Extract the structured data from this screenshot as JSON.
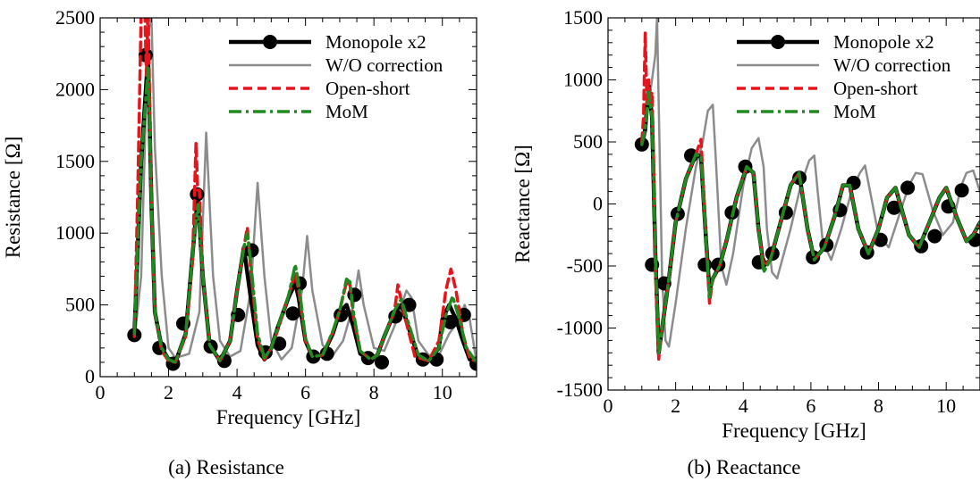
{
  "figure": {
    "colors": {
      "monopole": "#000000",
      "wo_correction": "#8c8c8c",
      "open_short": "#e8141b",
      "mom": "#1f8a1f"
    }
  },
  "chart_data": [
    {
      "type": "line",
      "caption": "(a) Resistance",
      "xlabel": "Frequency [GHz]",
      "ylabel": "Resistance [Ω]",
      "xlim": [
        0,
        11
      ],
      "ylim": [
        0,
        2500
      ],
      "xticks": [
        0,
        2,
        4,
        6,
        8,
        10
      ],
      "yticks": [
        0,
        500,
        1000,
        1500,
        2000,
        2500
      ],
      "legend_position": "top-right",
      "series": [
        {
          "name": "Monopole x2",
          "key": "monopole",
          "x": [
            1.0,
            1.2,
            1.4,
            1.5,
            1.6,
            1.8,
            2.0,
            2.2,
            2.5,
            2.7,
            2.85,
            3.0,
            3.2,
            3.5,
            3.8,
            4.0,
            4.2,
            4.4,
            4.6,
            4.8,
            5.0,
            5.2,
            5.5,
            5.7,
            5.8,
            6.0,
            6.2,
            6.5,
            6.8,
            7.0,
            7.2,
            7.4,
            7.6,
            7.9,
            8.1,
            8.3,
            8.6,
            8.8,
            9.0,
            9.3,
            9.6,
            9.9,
            10.0,
            10.2,
            10.4,
            10.6,
            10.8,
            11.0
          ],
          "y": [
            300,
            1500,
            2240,
            1200,
            450,
            200,
            120,
            100,
            300,
            850,
            1250,
            700,
            220,
            110,
            250,
            600,
            900,
            550,
            220,
            120,
            200,
            350,
            550,
            650,
            550,
            250,
            140,
            150,
            300,
            450,
            500,
            350,
            160,
            120,
            150,
            280,
            450,
            500,
            350,
            140,
            110,
            200,
            400,
            500,
            400,
            250,
            120,
            100
          ],
          "markers_x": [
            1.0,
            1.33,
            1.73,
            2.13,
            2.43,
            2.83,
            3.23,
            3.63,
            4.03,
            4.43,
            4.83,
            5.23,
            5.63,
            5.83,
            6.23,
            6.63,
            7.03,
            7.43,
            7.83,
            8.23,
            8.63,
            9.03,
            9.43,
            9.83,
            10.23,
            10.63,
            11.0
          ],
          "markers_y": [
            290,
            2240,
            200,
            90,
            370,
            1270,
            210,
            110,
            430,
            880,
            170,
            230,
            440,
            650,
            140,
            160,
            430,
            570,
            130,
            100,
            420,
            500,
            120,
            120,
            380,
            430,
            90
          ]
        },
        {
          "name": "W/O correction",
          "key": "wo_correction",
          "x": [
            1.0,
            1.2,
            1.4,
            1.5,
            1.6,
            1.8,
            2.0,
            2.2,
            2.6,
            2.9,
            3.1,
            3.3,
            3.5,
            3.8,
            4.1,
            4.4,
            4.6,
            4.8,
            5.0,
            5.3,
            5.6,
            5.9,
            6.05,
            6.2,
            6.5,
            6.8,
            7.1,
            7.4,
            7.55,
            7.7,
            8.0,
            8.3,
            8.6,
            8.95,
            9.1,
            9.3,
            9.6,
            9.9,
            10.2,
            10.5,
            10.65,
            10.8,
            11.0
          ],
          "y": [
            250,
            700,
            2400,
            2500,
            1600,
            700,
            200,
            130,
            160,
            450,
            1700,
            700,
            250,
            140,
            180,
            600,
            1350,
            700,
            250,
            120,
            200,
            600,
            980,
            600,
            220,
            150,
            250,
            500,
            740,
            500,
            200,
            180,
            350,
            600,
            550,
            250,
            150,
            150,
            300,
            400,
            500,
            400,
            100
          ]
        },
        {
          "name": "Open-short",
          "key": "open_short",
          "x": [
            1.0,
            1.1,
            1.2,
            1.3,
            1.35,
            1.4,
            1.5,
            1.6,
            1.8,
            2.0,
            2.2,
            2.5,
            2.7,
            2.8,
            2.85,
            2.9,
            3.0,
            3.2,
            3.5,
            3.8,
            4.0,
            4.2,
            4.3,
            4.4,
            4.6,
            4.8,
            5.0,
            5.2,
            5.5,
            5.7,
            5.8,
            6.0,
            6.2,
            6.5,
            6.8,
            7.0,
            7.2,
            7.3,
            7.4,
            7.6,
            7.9,
            8.1,
            8.3,
            8.6,
            8.7,
            8.9,
            9.2,
            9.6,
            9.9,
            10.1,
            10.25,
            10.4,
            10.6,
            10.8,
            11.0
          ],
          "y": [
            280,
            1300,
            2550,
            2600,
            2100,
            2600,
            1200,
            450,
            180,
            110,
            100,
            280,
            800,
            1630,
            1300,
            1300,
            700,
            220,
            110,
            250,
            600,
            900,
            1040,
            750,
            260,
            120,
            200,
            330,
            560,
            720,
            600,
            250,
            140,
            150,
            310,
            460,
            660,
            640,
            420,
            180,
            120,
            150,
            280,
            450,
            640,
            420,
            140,
            110,
            250,
            600,
            750,
            600,
            300,
            130,
            100
          ]
        },
        {
          "name": "MoM",
          "key": "mom",
          "x": [
            1.0,
            1.2,
            1.4,
            1.5,
            1.6,
            1.8,
            2.0,
            2.2,
            2.5,
            2.7,
            2.85,
            3.0,
            3.2,
            3.5,
            3.8,
            4.0,
            4.2,
            4.3,
            4.4,
            4.6,
            4.8,
            5.0,
            5.2,
            5.5,
            5.7,
            5.8,
            6.0,
            6.2,
            6.5,
            6.8,
            7.0,
            7.2,
            7.3,
            7.4,
            7.6,
            7.9,
            8.1,
            8.3,
            8.6,
            8.8,
            9.0,
            9.3,
            9.6,
            9.9,
            10.1,
            10.3,
            10.5,
            10.7,
            11.0
          ],
          "y": [
            300,
            1500,
            2150,
            1200,
            450,
            200,
            120,
            100,
            300,
            850,
            1200,
            700,
            220,
            110,
            250,
            600,
            900,
            1000,
            800,
            300,
            130,
            200,
            350,
            560,
            780,
            650,
            270,
            140,
            150,
            320,
            460,
            680,
            660,
            450,
            180,
            120,
            150,
            280,
            460,
            540,
            380,
            150,
            110,
            200,
            430,
            560,
            400,
            200,
            100
          ]
        }
      ]
    },
    {
      "type": "line",
      "caption": "(b) Reactance",
      "xlabel": "Frequency [GHz]",
      "ylabel": "Reactance [Ω]",
      "xlim": [
        0,
        11
      ],
      "ylim": [
        -1500,
        1500
      ],
      "xticks": [
        0,
        2,
        4,
        6,
        8,
        10
      ],
      "yticks": [
        -1500,
        -1000,
        -500,
        0,
        500,
        1000,
        1500
      ],
      "legend_position": "top-right",
      "series": [
        {
          "name": "Monopole x2",
          "key": "monopole",
          "x": [
            1.0,
            1.1,
            1.2,
            1.3,
            1.4,
            1.5,
            1.6,
            1.8,
            2.0,
            2.3,
            2.6,
            2.75,
            2.9,
            3.0,
            3.1,
            3.3,
            3.5,
            3.8,
            4.1,
            4.3,
            4.45,
            4.6,
            4.8,
            5.1,
            5.4,
            5.65,
            5.9,
            6.1,
            6.4,
            6.7,
            6.95,
            7.15,
            7.4,
            7.7,
            8.0,
            8.25,
            8.5,
            8.9,
            9.2,
            9.5,
            9.8,
            10.0,
            10.3,
            10.6,
            10.8,
            11.0
          ],
          "y": [
            480,
            600,
            950,
            700,
            -400,
            -1200,
            -1000,
            -600,
            -150,
            200,
            400,
            380,
            -300,
            -700,
            -600,
            -500,
            -300,
            50,
            300,
            250,
            -200,
            -500,
            -450,
            -150,
            150,
            250,
            -200,
            -450,
            -350,
            -100,
            150,
            150,
            -200,
            -400,
            -200,
            50,
            130,
            -250,
            -350,
            -150,
            50,
            130,
            -100,
            -300,
            -250,
            -150
          ],
          "markers_x": [
            1.0,
            1.3,
            1.66,
            2.06,
            2.46,
            2.86,
            3.26,
            3.66,
            4.06,
            4.46,
            4.86,
            5.26,
            5.66,
            6.06,
            6.46,
            6.86,
            7.26,
            7.66,
            8.06,
            8.46,
            8.86,
            9.26,
            9.66,
            10.06,
            10.46,
            10.86
          ],
          "markers_y": [
            480,
            -490,
            -640,
            -80,
            390,
            -490,
            -490,
            -70,
            300,
            -470,
            -400,
            -70,
            210,
            -430,
            -330,
            -50,
            170,
            -390,
            -290,
            -30,
            130,
            -340,
            -260,
            -20,
            110,
            -290
          ]
        },
        {
          "name": "W/O correction",
          "key": "wo_correction",
          "x": [
            1.0,
            1.2,
            1.4,
            1.45,
            1.5,
            1.6,
            1.7,
            1.8,
            2.0,
            2.3,
            2.6,
            2.8,
            2.95,
            3.1,
            3.2,
            3.35,
            3.5,
            3.7,
            4.0,
            4.25,
            4.45,
            4.6,
            4.7,
            4.85,
            5.0,
            5.4,
            5.7,
            5.95,
            6.1,
            6.2,
            6.35,
            6.6,
            6.9,
            7.2,
            7.45,
            7.6,
            7.75,
            8.0,
            8.3,
            8.6,
            8.9,
            9.1,
            9.3,
            9.6,
            9.9,
            10.2,
            10.45,
            10.6,
            10.8,
            11.0
          ],
          "y": [
            500,
            800,
            1200,
            1500,
            800,
            -600,
            -1100,
            -1150,
            -800,
            -200,
            300,
            500,
            750,
            800,
            300,
            -500,
            -650,
            -400,
            150,
            450,
            530,
            300,
            -200,
            -550,
            -600,
            -200,
            150,
            350,
            390,
            100,
            -300,
            -450,
            -200,
            100,
            250,
            310,
            100,
            -250,
            -350,
            -100,
            150,
            250,
            240,
            -50,
            -250,
            -150,
            150,
            250,
            270,
            100
          ]
        },
        {
          "name": "Open-short",
          "key": "open_short",
          "x": [
            1.0,
            1.05,
            1.1,
            1.15,
            1.2,
            1.25,
            1.3,
            1.35,
            1.4,
            1.5,
            1.6,
            1.8,
            2.0,
            2.3,
            2.6,
            2.75,
            2.9,
            3.0,
            3.1,
            3.3,
            3.5,
            3.8,
            4.1,
            4.3,
            4.45,
            4.6,
            4.8,
            5.1,
            5.4,
            5.65,
            5.9,
            6.1,
            6.4,
            6.7,
            6.95,
            7.15,
            7.4,
            7.7,
            8.0,
            8.25,
            8.5,
            8.9,
            9.2,
            9.5,
            9.8,
            10.0,
            10.3,
            10.6,
            10.8,
            11.0
          ],
          "y": [
            500,
            700,
            1380,
            800,
            1000,
            820,
            900,
            300,
            -500,
            -1250,
            -1000,
            -600,
            -150,
            200,
            400,
            520,
            -300,
            -800,
            -600,
            -500,
            -300,
            50,
            300,
            250,
            -200,
            -500,
            -450,
            -150,
            150,
            250,
            -200,
            -450,
            -350,
            -100,
            150,
            150,
            -200,
            -400,
            -200,
            50,
            130,
            -250,
            -350,
            -150,
            50,
            130,
            -100,
            -300,
            -250,
            -150
          ]
        },
        {
          "name": "MoM",
          "key": "mom",
          "x": [
            1.0,
            1.1,
            1.2,
            1.3,
            1.4,
            1.5,
            1.6,
            1.8,
            2.0,
            2.3,
            2.6,
            2.75,
            2.9,
            3.0,
            3.1,
            3.3,
            3.5,
            3.8,
            4.1,
            4.3,
            4.45,
            4.6,
            4.8,
            5.1,
            5.4,
            5.65,
            5.9,
            6.1,
            6.4,
            6.7,
            6.95,
            7.15,
            7.4,
            7.7,
            8.0,
            8.25,
            8.5,
            8.9,
            9.2,
            9.5,
            9.8,
            10.0,
            10.3,
            10.6,
            10.8,
            11.0
          ],
          "y": [
            480,
            600,
            900,
            700,
            -400,
            -1200,
            -1000,
            -600,
            -150,
            200,
            400,
            380,
            -300,
            -750,
            -600,
            -500,
            -300,
            50,
            300,
            250,
            -200,
            -550,
            -450,
            -150,
            150,
            250,
            -200,
            -450,
            -350,
            -100,
            150,
            150,
            -200,
            -400,
            -200,
            50,
            130,
            -250,
            -350,
            -150,
            50,
            130,
            -100,
            -300,
            -250,
            -150
          ]
        }
      ]
    }
  ]
}
